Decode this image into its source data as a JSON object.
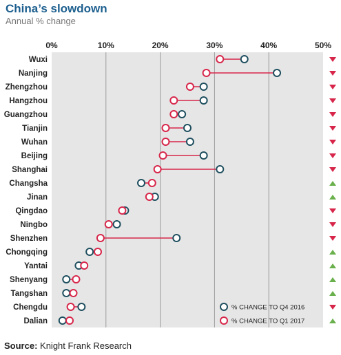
{
  "header": {
    "title": "China’s slowdown",
    "subtitle": "Annual % change"
  },
  "footer": {
    "source_label": "Source:",
    "source_text": "Knight Frank Research"
  },
  "colors": {
    "q4": "#1f4f5f",
    "q1": "#d7264a",
    "up": "#6ab04c",
    "down": "#d7264a",
    "plot_bg": "#e6e6e6",
    "grid": "#9a9a9a"
  },
  "chart_data": {
    "type": "dumbbell",
    "xlim": [
      0,
      50
    ],
    "ticks": [
      "0%",
      "10%",
      "20%",
      "30%",
      "40%",
      "50%"
    ],
    "tick_values": [
      0,
      10,
      20,
      30,
      40,
      50
    ],
    "grid": true,
    "legend_position": "bottom-right",
    "series": [
      {
        "name": "% CHANGE TO Q4 2016",
        "key": "q4"
      },
      {
        "name": "% CHANGE TO Q1 2017",
        "key": "q1"
      }
    ],
    "cities": [
      "Wuxi",
      "Nanjing",
      "Zhengzhou",
      "Hangzhou",
      "Guangzhou",
      "Tianjin",
      "Wuhan",
      "Beijing",
      "Shanghai",
      "Changsha",
      "Jinan",
      "Qingdao",
      "Ningbo",
      "Shenzhen",
      "Chongqing",
      "Yantai",
      "Shenyang",
      "Tangshan",
      "Chengdu",
      "Dalian"
    ],
    "q4_2016": [
      35.5,
      41.5,
      28,
      28,
      24,
      25,
      25.5,
      28,
      31,
      16.5,
      19,
      13.5,
      12,
      23,
      7,
      5,
      2.7,
      2.7,
      5.5,
      2
    ],
    "q1_2017": [
      31,
      28.5,
      25.5,
      22.5,
      22.5,
      21,
      21,
      20.5,
      19.5,
      18.5,
      18,
      13,
      10.5,
      9,
      8.5,
      6,
      4.5,
      4,
      3.5,
      3.3
    ],
    "trend": [
      "down",
      "down",
      "down",
      "down",
      "down",
      "down",
      "down",
      "down",
      "down",
      "up",
      "up",
      "down",
      "down",
      "down",
      "up",
      "up",
      "up",
      "up",
      "down",
      "up"
    ]
  }
}
